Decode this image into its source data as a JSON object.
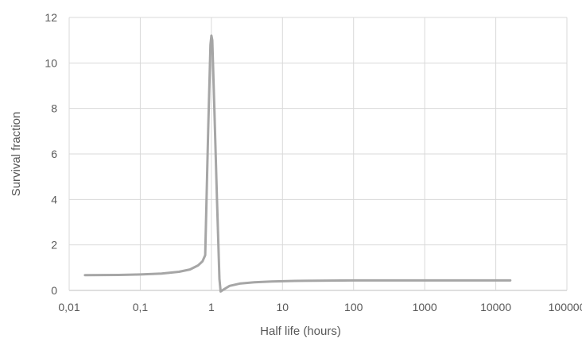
{
  "chart_data": {
    "type": "line",
    "title": "",
    "xlabel": "Half life (hours)",
    "ylabel": "Survival fraction",
    "x_scale": "log",
    "xlim": [
      0.01,
      100000
    ],
    "ylim": [
      0,
      12
    ],
    "grid": true,
    "x_ticks": [
      {
        "value": 0.01,
        "label": "0,01"
      },
      {
        "value": 0.1,
        "label": "0,1"
      },
      {
        "value": 1,
        "label": "1"
      },
      {
        "value": 10,
        "label": "10"
      },
      {
        "value": 100,
        "label": "100"
      },
      {
        "value": 1000,
        "label": "1000"
      },
      {
        "value": 10000,
        "label": "10000"
      },
      {
        "value": 100000,
        "label": "100000"
      }
    ],
    "y_ticks": [
      {
        "value": 0,
        "label": "0"
      },
      {
        "value": 2,
        "label": "2"
      },
      {
        "value": 4,
        "label": "4"
      },
      {
        "value": 6,
        "label": "6"
      },
      {
        "value": 8,
        "label": "8"
      },
      {
        "value": 10,
        "label": "10"
      },
      {
        "value": 12,
        "label": "12"
      }
    ],
    "series": [
      {
        "color": "#a6a6a6",
        "x": [
          0.0167,
          0.05,
          0.1,
          0.2,
          0.35,
          0.5,
          0.65,
          0.75,
          0.82,
          0.9,
          0.97,
          1.0,
          1.03,
          1.1,
          1.2,
          1.3,
          1.35,
          1.5,
          1.8,
          2.5,
          4,
          7,
          15,
          30,
          100,
          1000,
          10000,
          16000
        ],
        "y": [
          0.67,
          0.68,
          0.7,
          0.74,
          0.82,
          0.92,
          1.1,
          1.28,
          1.55,
          7.0,
          10.8,
          11.2,
          11.0,
          8.0,
          4.0,
          0.5,
          -0.05,
          0.05,
          0.2,
          0.3,
          0.36,
          0.39,
          0.42,
          0.43,
          0.44,
          0.44,
          0.44,
          0.44
        ]
      }
    ]
  }
}
